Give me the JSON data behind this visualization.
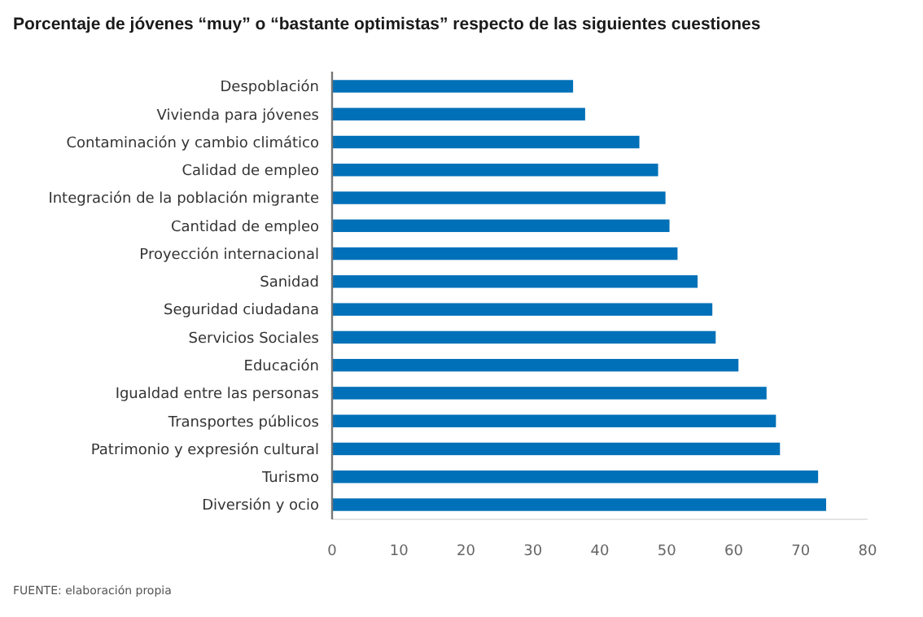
{
  "chart_data": {
    "type": "bar",
    "orientation": "horizontal",
    "title": "Porcentaje de jóvenes “muy” o “bastante optimistas” respecto de las siguientes cuestiones",
    "categories": [
      "Despoblación",
      "Vivienda para jóvenes",
      "Contaminación y cambio climático",
      "Calidad de empleo",
      "Integración de la población migrante",
      "Cantidad de empleo",
      "Proyección internacional",
      "Sanidad",
      "Seguridad ciudadana",
      "Servicios Sociales",
      "Educación",
      "Igualdad entre las personas",
      "Transportes públicos",
      "Patrimonio y expresión cultural",
      "Turismo",
      "Diversión y ocio"
    ],
    "values": [
      36.0,
      37.8,
      45.9,
      48.7,
      49.8,
      50.4,
      51.6,
      54.6,
      56.8,
      57.3,
      60.7,
      64.9,
      66.3,
      66.9,
      72.6,
      73.8
    ],
    "color": "#0070b8",
    "xlim": [
      0,
      80
    ],
    "xticks": [
      0,
      10,
      20,
      30,
      40,
      50,
      60,
      70,
      80
    ],
    "grid": false,
    "annotations": [
      "FUENTE: elaboración propia"
    ]
  }
}
